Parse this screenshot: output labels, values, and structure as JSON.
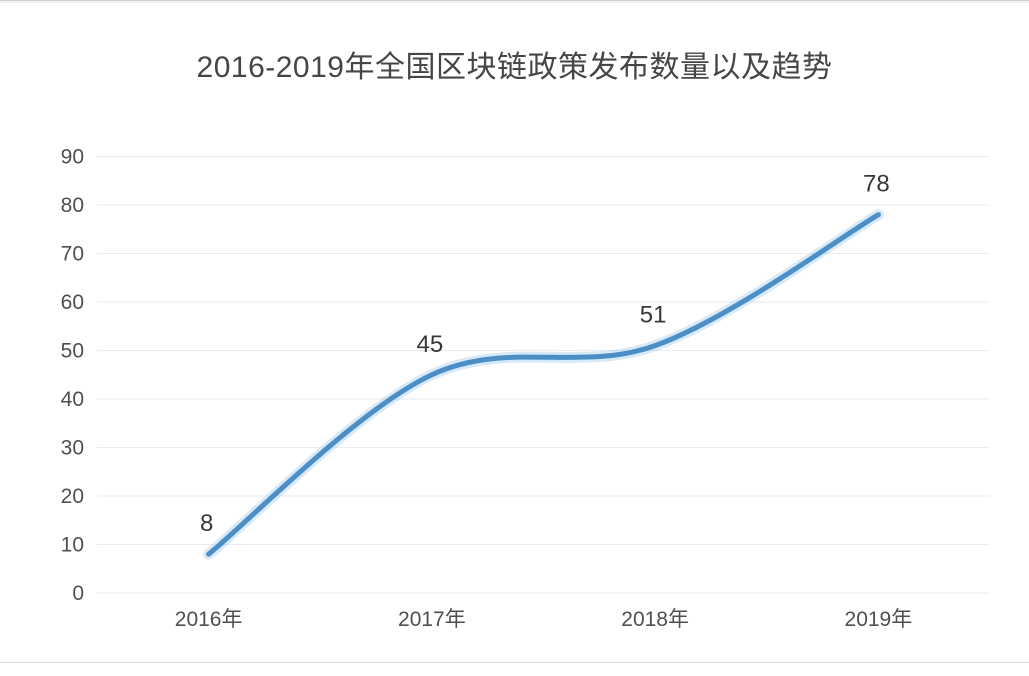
{
  "page": {
    "background": "#ffffff",
    "edge_line_color": "#d9d9dc"
  },
  "chart_data": {
    "type": "line",
    "title": "2016-2019年全国区块链政策发布数量以及趋势",
    "categories": [
      "2016年",
      "2017年",
      "2018年",
      "2019年"
    ],
    "values": [
      8,
      45,
      51,
      78
    ],
    "point_labels": [
      "8",
      "45",
      "51",
      "78"
    ],
    "y_ticks": [
      0,
      10,
      20,
      30,
      40,
      50,
      60,
      70,
      80,
      90
    ],
    "ylim": [
      0,
      90
    ],
    "xlabel": "",
    "ylabel": "",
    "grid": true,
    "smooth": true,
    "legend": "none",
    "colors": {
      "line": "#4b8fc6",
      "line_glow": "rgba(144,195,236,0.35)",
      "grid": "#ebebee",
      "axis_text": "#4f4f4f",
      "point_label": "#383838",
      "title_text": "#464646"
    }
  }
}
